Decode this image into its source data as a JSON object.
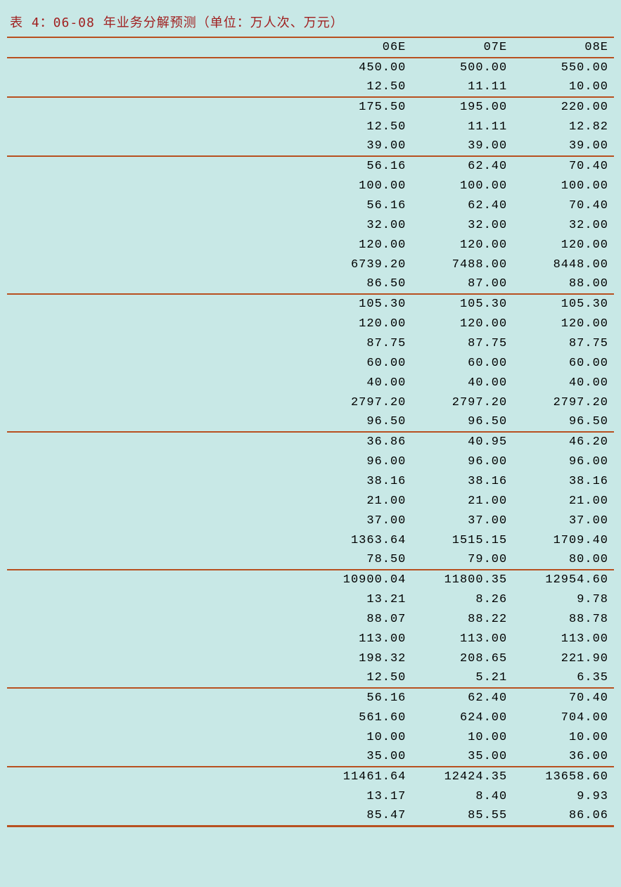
{
  "title": "表 4：06-08 年业务分解预测（单位：万人次、万元）",
  "title_color": "#a02020",
  "border_color": "#b85020",
  "background_color": "#c8e8e6",
  "text_color": "#000000",
  "font_size_title": 18,
  "font_size_data": 17,
  "columns": {
    "label_width_pct": 50,
    "data_width_pct": 16.66
  },
  "headers": {
    "col1": "06E",
    "col2": "07E",
    "col3": "08E"
  },
  "sections": [
    {
      "rows": [
        {
          "c1": "450.00",
          "c2": "500.00",
          "c3": "550.00"
        },
        {
          "c1": "12.50",
          "c2": "11.11",
          "c3": "10.00"
        }
      ]
    },
    {
      "rows": [
        {
          "c1": "175.50",
          "c2": "195.00",
          "c3": "220.00"
        },
        {
          "c1": "12.50",
          "c2": "11.11",
          "c3": "12.82"
        },
        {
          "c1": "39.00",
          "c2": "39.00",
          "c3": "39.00"
        }
      ]
    },
    {
      "rows": [
        {
          "c1": "56.16",
          "c2": "62.40",
          "c3": "70.40"
        },
        {
          "c1": "100.00",
          "c2": "100.00",
          "c3": "100.00"
        },
        {
          "c1": "56.16",
          "c2": "62.40",
          "c3": "70.40"
        },
        {
          "c1": "32.00",
          "c2": "32.00",
          "c3": "32.00"
        },
        {
          "c1": "120.00",
          "c2": "120.00",
          "c3": "120.00"
        },
        {
          "c1": "6739.20",
          "c2": "7488.00",
          "c3": "8448.00"
        },
        {
          "c1": "86.50",
          "c2": "87.00",
          "c3": "88.00"
        }
      ]
    },
    {
      "rows": [
        {
          "c1": "105.30",
          "c2": "105.30",
          "c3": "105.30"
        },
        {
          "c1": "120.00",
          "c2": "120.00",
          "c3": "120.00"
        },
        {
          "c1": "87.75",
          "c2": "87.75",
          "c3": "87.75"
        },
        {
          "c1": "60.00",
          "c2": "60.00",
          "c3": "60.00"
        },
        {
          "c1": "40.00",
          "c2": "40.00",
          "c3": "40.00"
        },
        {
          "c1": "2797.20",
          "c2": "2797.20",
          "c3": "2797.20"
        },
        {
          "c1": "96.50",
          "c2": "96.50",
          "c3": "96.50"
        }
      ]
    },
    {
      "rows": [
        {
          "c1": "36.86",
          "c2": "40.95",
          "c3": "46.20"
        },
        {
          "c1": "96.00",
          "c2": "96.00",
          "c3": "96.00"
        },
        {
          "c1": "38.16",
          "c2": "38.16",
          "c3": "38.16"
        },
        {
          "c1": "21.00",
          "c2": "21.00",
          "c3": "21.00"
        },
        {
          "c1": "37.00",
          "c2": "37.00",
          "c3": "37.00"
        },
        {
          "c1": "1363.64",
          "c2": "1515.15",
          "c3": "1709.40"
        },
        {
          "c1": "78.50",
          "c2": "79.00",
          "c3": "80.00"
        }
      ]
    },
    {
      "rows": [
        {
          "c1": "10900.04",
          "c2": "11800.35",
          "c3": "12954.60"
        },
        {
          "c1": "13.21",
          "c2": "8.26",
          "c3": "9.78"
        },
        {
          "c1": "88.07",
          "c2": "88.22",
          "c3": "88.78"
        },
        {
          "c1": "113.00",
          "c2": "113.00",
          "c3": "113.00"
        },
        {
          "c1": "198.32",
          "c2": "208.65",
          "c3": "221.90"
        },
        {
          "c1": "12.50",
          "c2": "5.21",
          "c3": "6.35"
        }
      ]
    },
    {
      "rows": [
        {
          "c1": "56.16",
          "c2": "62.40",
          "c3": "70.40"
        },
        {
          "c1": "561.60",
          "c2": "624.00",
          "c3": "704.00"
        },
        {
          "c1": "10.00",
          "c2": "10.00",
          "c3": "10.00"
        },
        {
          "c1": "35.00",
          "c2": "35.00",
          "c3": "36.00"
        }
      ]
    },
    {
      "rows": [
        {
          "c1": "11461.64",
          "c2": "12424.35",
          "c3": "13658.60"
        },
        {
          "c1": "13.17",
          "c2": "8.40",
          "c3": "9.93"
        },
        {
          "c1": "85.47",
          "c2": "85.55",
          "c3": "86.06"
        }
      ]
    }
  ]
}
